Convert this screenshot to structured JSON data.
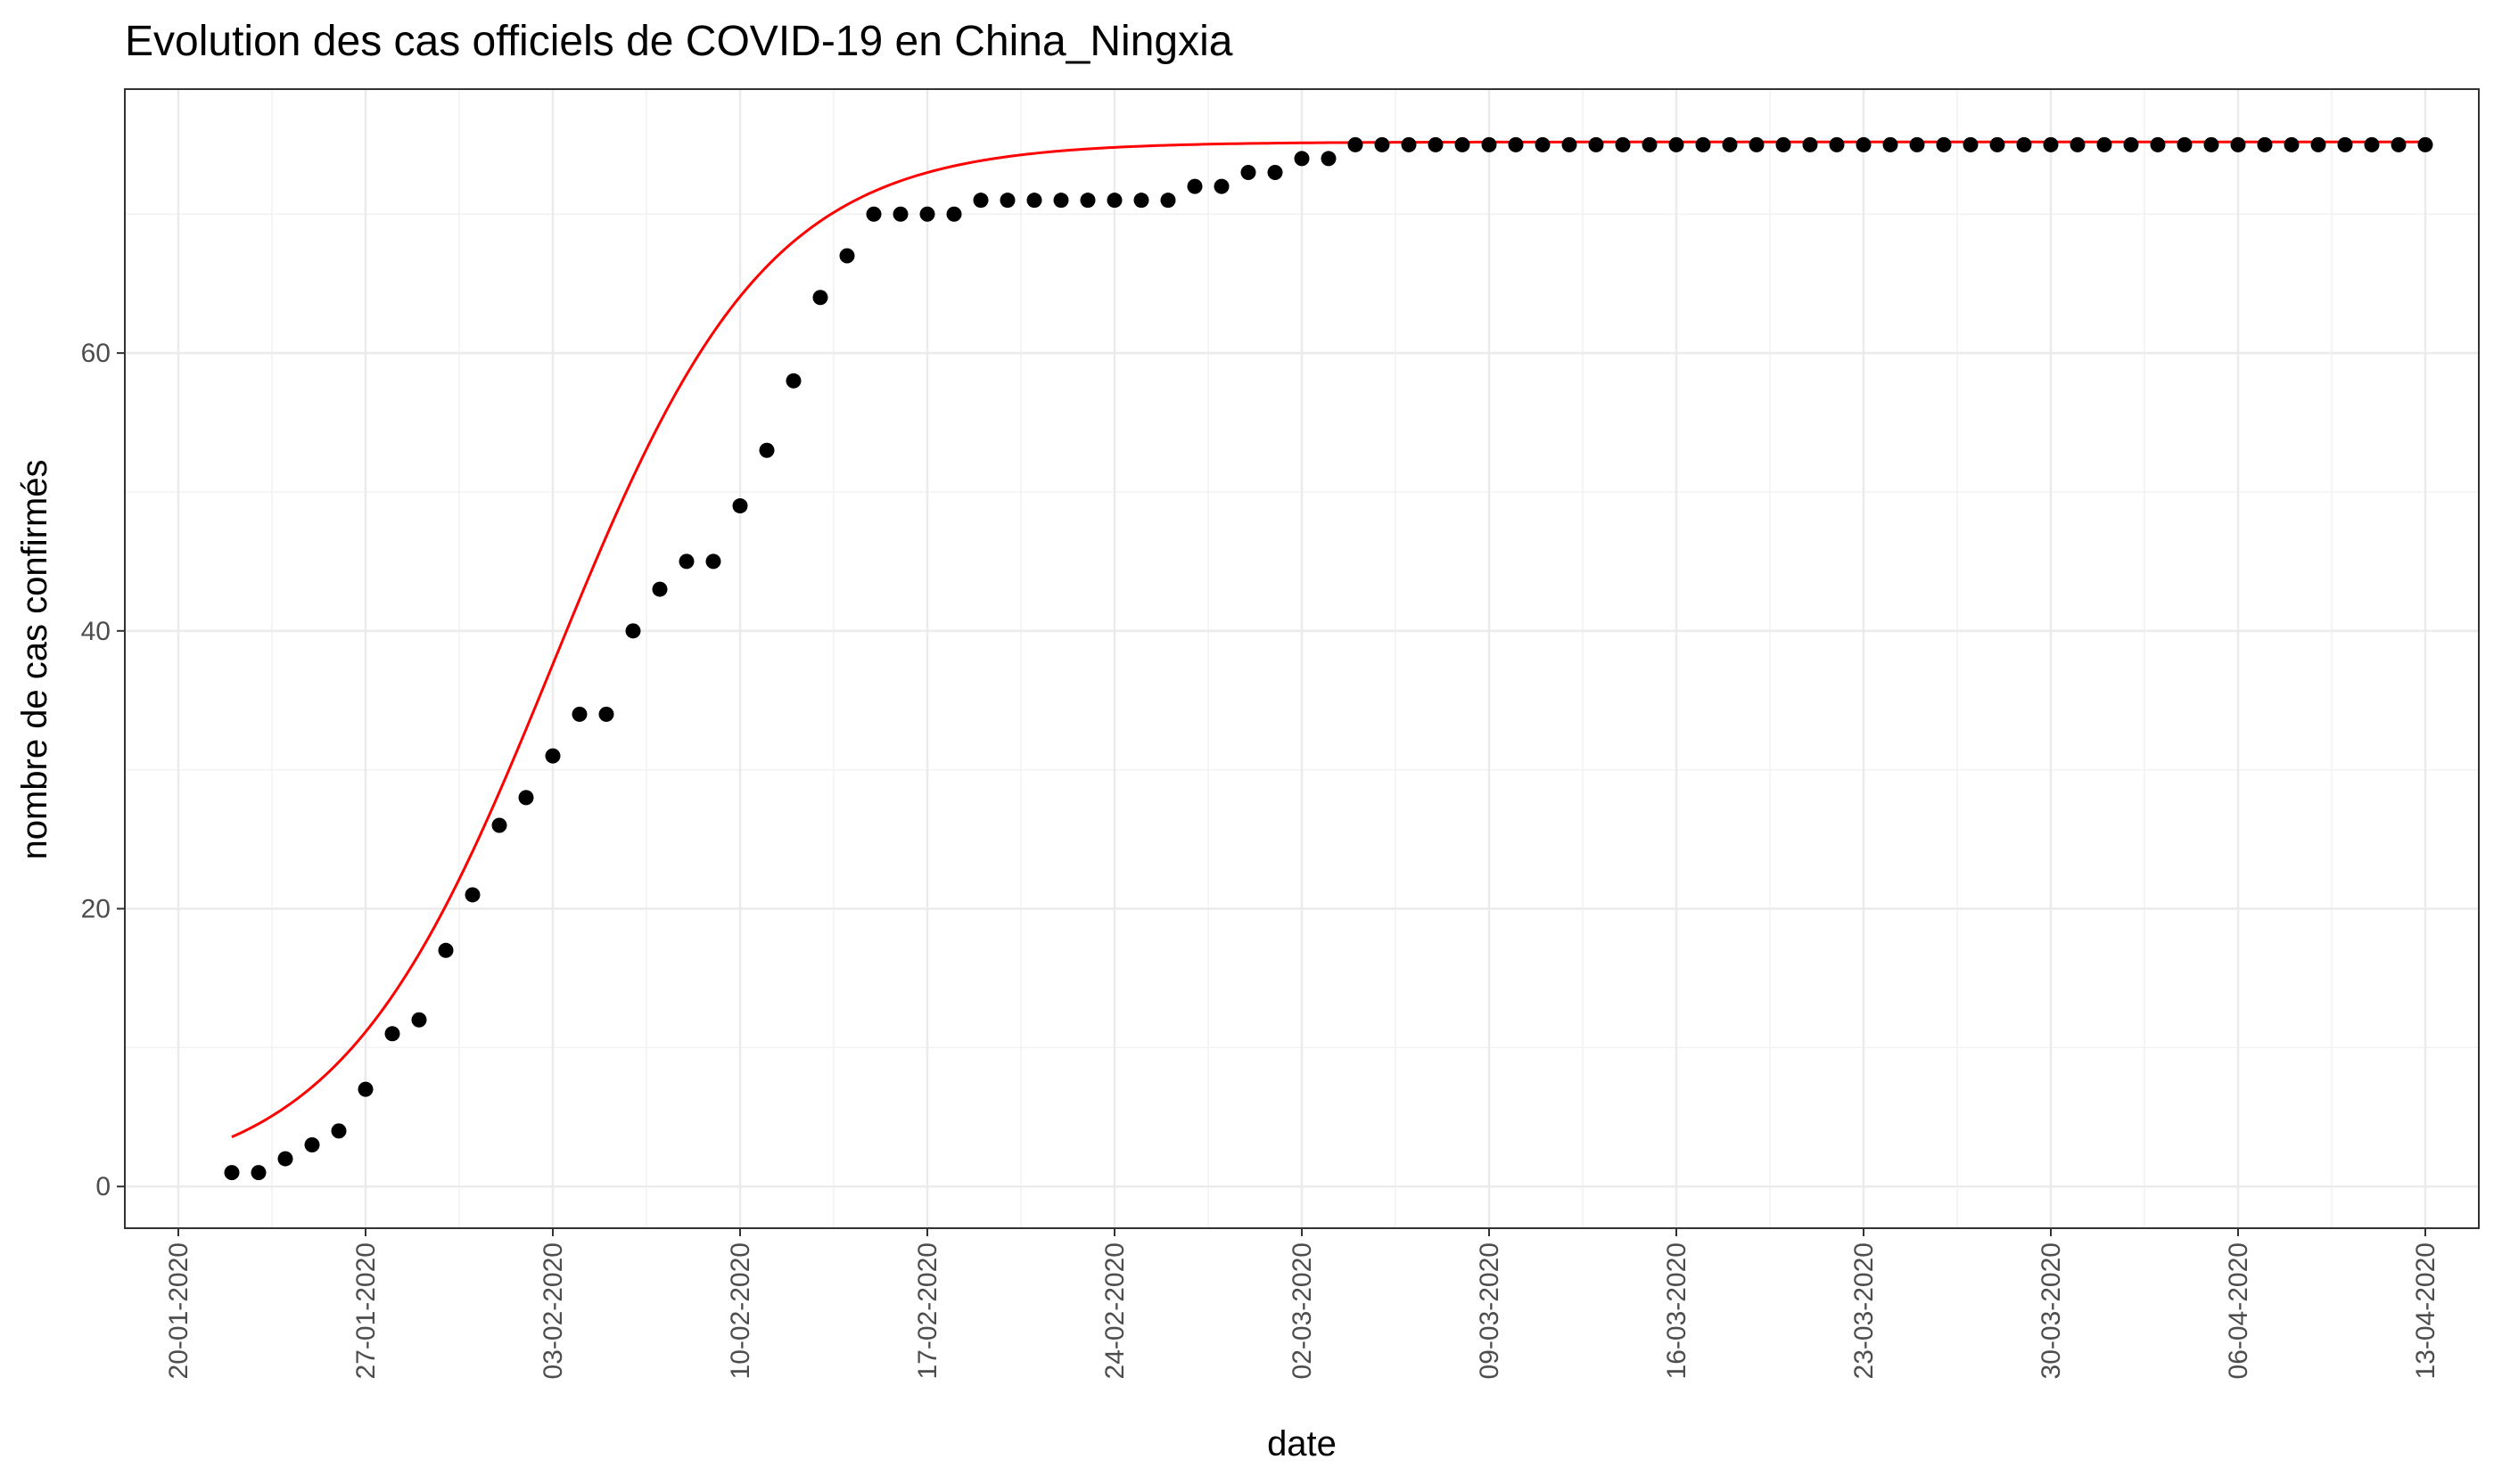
{
  "chart_data": {
    "type": "scatter",
    "title": "Evolution des cas officiels de COVID-19 en China_Ningxia",
    "xlabel": "date",
    "ylabel": "nombre de cas confirmés",
    "x_ticks": [
      "20-01-2020",
      "27-01-2020",
      "03-02-2020",
      "10-02-2020",
      "17-02-2020",
      "24-02-2020",
      "02-03-2020",
      "09-03-2020",
      "16-03-2020",
      "23-03-2020",
      "30-03-2020",
      "06-04-2020",
      "13-04-2020"
    ],
    "y_ticks": [
      0,
      20,
      40,
      60
    ],
    "ylim": [
      -3,
      79
    ],
    "xlim": [
      "18-01-2020",
      "15-04-2020"
    ],
    "grid": true,
    "series": [
      {
        "kind": "points",
        "color": "#000000",
        "x": [
          "22-01-2020",
          "23-01-2020",
          "24-01-2020",
          "25-01-2020",
          "26-01-2020",
          "27-01-2020",
          "28-01-2020",
          "29-01-2020",
          "30-01-2020",
          "31-01-2020",
          "01-02-2020",
          "02-02-2020",
          "03-02-2020",
          "04-02-2020",
          "05-02-2020",
          "06-02-2020",
          "07-02-2020",
          "08-02-2020",
          "09-02-2020",
          "10-02-2020",
          "11-02-2020",
          "12-02-2020",
          "13-02-2020",
          "14-02-2020",
          "15-02-2020",
          "16-02-2020",
          "17-02-2020",
          "18-02-2020",
          "19-02-2020",
          "20-02-2020",
          "21-02-2020",
          "22-02-2020",
          "23-02-2020",
          "24-02-2020",
          "25-02-2020",
          "26-02-2020",
          "27-02-2020",
          "28-02-2020",
          "29-02-2020",
          "01-03-2020",
          "02-03-2020",
          "03-03-2020",
          "04-03-2020",
          "05-03-2020",
          "06-03-2020",
          "07-03-2020",
          "08-03-2020",
          "09-03-2020",
          "10-03-2020",
          "11-03-2020",
          "12-03-2020",
          "13-03-2020",
          "14-03-2020",
          "15-03-2020",
          "16-03-2020",
          "17-03-2020",
          "18-03-2020",
          "19-03-2020",
          "20-03-2020",
          "21-03-2020",
          "22-03-2020",
          "23-03-2020",
          "24-03-2020",
          "25-03-2020",
          "26-03-2020",
          "27-03-2020",
          "28-03-2020",
          "29-03-2020",
          "30-03-2020",
          "31-03-2020",
          "01-04-2020",
          "02-04-2020",
          "03-04-2020",
          "04-04-2020",
          "05-04-2020",
          "06-04-2020",
          "07-04-2020",
          "08-04-2020",
          "09-04-2020",
          "10-04-2020",
          "11-04-2020",
          "12-04-2020",
          "13-04-2020"
        ],
        "y": [
          1,
          1,
          2,
          3,
          4,
          7,
          11,
          12,
          17,
          21,
          26,
          28,
          31,
          34,
          34,
          40,
          43,
          45,
          45,
          49,
          53,
          58,
          64,
          67,
          70,
          70,
          70,
          70,
          71,
          71,
          71,
          71,
          71,
          71,
          71,
          71,
          72,
          72,
          73,
          73,
          74,
          74,
          75,
          75,
          75,
          75,
          75,
          75,
          75,
          75,
          75,
          75,
          75,
          75,
          75,
          75,
          75,
          75,
          75,
          75,
          75,
          75,
          75,
          75,
          75,
          75,
          75,
          75,
          75,
          75,
          75,
          75,
          75,
          75,
          75,
          75,
          75,
          75,
          75,
          75,
          75,
          75,
          75
        ]
      },
      {
        "kind": "fitted-curve",
        "color": "#ff0000",
        "model": "logistic",
        "asymptote": 75.2,
        "growth_rate": 0.25,
        "midpoint": "03-02-2020",
        "x_range": [
          "22-01-2020",
          "13-04-2020"
        ]
      }
    ]
  }
}
